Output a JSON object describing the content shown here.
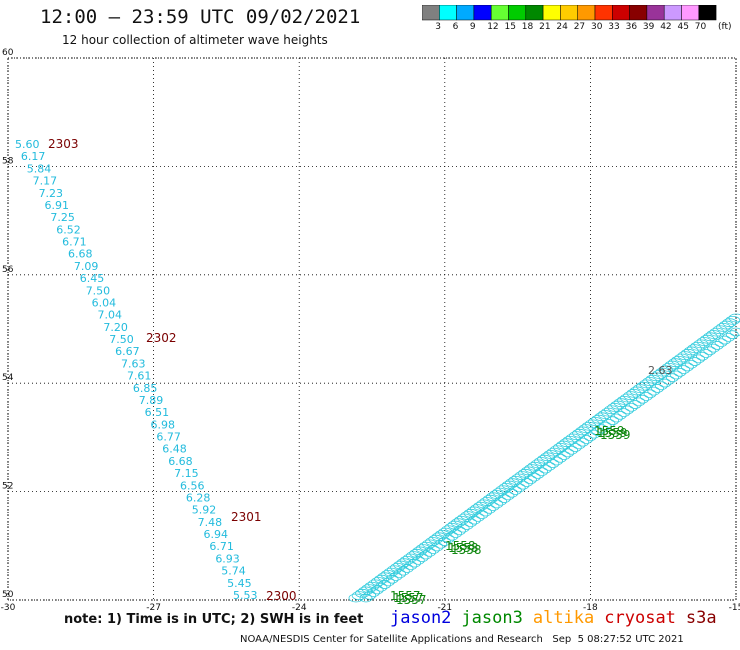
{
  "header": {
    "title": "12:00 – 23:59 UTC 09/02/2021",
    "subtitle": "12 hour collection of altimeter wave heights"
  },
  "legend": {
    "colors": [
      "#808080",
      "#00ffff",
      "#00aaff",
      "#0000ff",
      "#66ff33",
      "#00cc00",
      "#008800",
      "#ffff00",
      "#ffcc00",
      "#ff9900",
      "#ff3300",
      "#cc0000",
      "#880000",
      "#993399",
      "#cc99ff",
      "#ff99ff",
      "#000000"
    ],
    "labels": [
      "3",
      "6",
      "9",
      "12",
      "15",
      "18",
      "21",
      "24",
      "27",
      "30",
      "33",
      "36",
      "39",
      "42",
      "45",
      "70"
    ],
    "unit": "(ft)"
  },
  "axes": {
    "x_ticks": [
      "-30",
      "-27",
      "-24",
      "-21",
      "-18",
      "-15"
    ],
    "y_ticks": [
      "50",
      "52",
      "54",
      "56",
      "58",
      "60"
    ],
    "x_range": [
      -30,
      -15
    ],
    "y_range": [
      50,
      60
    ]
  },
  "tracks": {
    "west_values": [
      "5.60",
      "6.17",
      "5.84",
      "7.17",
      "7.23",
      "6.91",
      "7.25",
      "6.52",
      "6.71",
      "6.68",
      "7.09",
      "6.45",
      "7.50",
      "6.04",
      "7.04",
      "7.20",
      "7.50",
      "6.67",
      "7.63",
      "7.61",
      "6.85",
      "7.89",
      "6.51",
      "6.98",
      "6.77",
      "6.48",
      "6.68",
      "7.15",
      "6.56",
      "6.28",
      "5.92",
      "7.48",
      "6.94",
      "6.71",
      "6.93",
      "5.74",
      "5.45",
      "5.53"
    ],
    "time_labels": [
      "2303",
      "2302",
      "2301",
      "2300"
    ],
    "east_labels": [
      "1559",
      "1558",
      "1557",
      "2.63"
    ]
  },
  "notes": {
    "note": "note: 1) Time is in UTC; 2) SWH is in feet",
    "satellites": [
      {
        "name": "jason2",
        "color": "#0000dd"
      },
      {
        "name": "jason3",
        "color": "#008800"
      },
      {
        "name": "altika",
        "color": "#ff9900"
      },
      {
        "name": "cryosat",
        "color": "#cc0000"
      },
      {
        "name": "s3a",
        "color": "#880000"
      }
    ],
    "footer": "NOAA/NESDIS Center for Satellite Applications and Research   Sep  5 08:27:52 UTC 2021"
  }
}
